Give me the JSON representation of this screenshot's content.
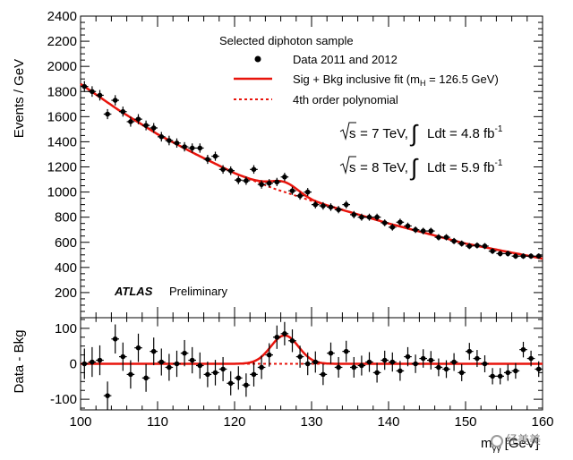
{
  "chart_data": [
    {
      "type": "scatter",
      "panel": "main",
      "ylabel": "Events / GeV",
      "xlim": [
        100,
        160
      ],
      "ylim": [
        0,
        2400
      ],
      "yticks": [
        200,
        400,
        600,
        800,
        1000,
        1200,
        1400,
        1600,
        1800,
        2000,
        2200,
        2400
      ],
      "legend_header": "Selected diphoton sample",
      "legend_position": "top-right",
      "series": [
        {
          "name": "Data 2011 and 2012",
          "style": "points-with-error-bars",
          "x": [
            100.5,
            101.5,
            102.5,
            103.5,
            104.5,
            105.5,
            106.5,
            107.5,
            108.5,
            109.5,
            110.5,
            111.5,
            112.5,
            113.5,
            114.5,
            115.5,
            116.5,
            117.5,
            118.5,
            119.5,
            120.5,
            121.5,
            122.5,
            123.5,
            124.5,
            125.5,
            126.5,
            127.5,
            128.5,
            129.5,
            130.5,
            131.5,
            132.5,
            133.5,
            134.5,
            135.5,
            136.5,
            137.5,
            138.5,
            139.5,
            140.5,
            141.5,
            142.5,
            143.5,
            144.5,
            145.5,
            146.5,
            147.5,
            148.5,
            149.5,
            150.5,
            151.5,
            152.5,
            153.5,
            154.5,
            155.5,
            156.5,
            157.5,
            158.5,
            159.5
          ],
          "y": [
            1840,
            1800,
            1770,
            1620,
            1730,
            1640,
            1560,
            1580,
            1530,
            1510,
            1440,
            1410,
            1390,
            1360,
            1350,
            1350,
            1260,
            1285,
            1180,
            1170,
            1095,
            1090,
            1180,
            1060,
            1070,
            1080,
            1120,
            1010,
            970,
            1000,
            900,
            890,
            880,
            860,
            900,
            820,
            800,
            800,
            800,
            755,
            720,
            760,
            730,
            700,
            690,
            690,
            640,
            640,
            610,
            590,
            570,
            575,
            570,
            530,
            510,
            510,
            490,
            490,
            490,
            490
          ],
          "yerr": [
            43,
            42,
            42,
            40,
            41,
            40,
            40,
            40,
            39,
            39,
            38,
            38,
            37,
            37,
            37,
            37,
            36,
            36,
            34,
            34,
            33,
            33,
            34,
            33,
            33,
            33,
            33,
            32,
            31,
            32,
            30,
            30,
            30,
            29,
            30,
            29,
            28,
            28,
            28,
            27,
            27,
            28,
            27,
            26,
            26,
            26,
            25,
            25,
            25,
            24,
            24,
            24,
            24,
            23,
            23,
            23,
            22,
            22,
            22,
            22
          ],
          "color": "#000000"
        },
        {
          "name": "Sig + Bkg inclusive fit (m",
          "name_sub": "H",
          "name_tail": " = 126.5 GeV)",
          "style": "solid-line",
          "color": "#e8140c",
          "signal_mass": 126.5,
          "signal_width": 1.8,
          "signal_peak": 80,
          "background_y": [
            [
              100,
              1860
            ],
            [
              105,
              1650
            ],
            [
              110,
              1460
            ],
            [
              115,
              1300
            ],
            [
              120,
              1150
            ],
            [
              125,
              1030
            ],
            [
              130,
              930
            ],
            [
              135,
              840
            ],
            [
              140,
              750
            ],
            [
              145,
              670
            ],
            [
              150,
              590
            ],
            [
              155,
              530
            ],
            [
              160,
              470
            ]
          ]
        },
        {
          "name": "4th order polynomial",
          "style": "dashed-line",
          "color": "#e8140c"
        }
      ],
      "annotations": [
        {
          "id": "sqrt_s_7",
          "sqrt": "s",
          "energy": " = 7 TeV, ",
          "integral": "Ldt = 4.8 fb",
          "sup": "-1"
        },
        {
          "id": "sqrt_s_8",
          "sqrt": "s",
          "energy": " = 8 TeV, ",
          "integral": "Ldt = 5.9 fb",
          "sup": "-1"
        },
        {
          "id": "atlas",
          "label": "ATLAS",
          "status": "Preliminary"
        }
      ]
    },
    {
      "type": "scatter",
      "panel": "residual",
      "ylabel": "Data - Bkg",
      "xlabel": "m",
      "xlabel_sub": "γγ",
      "xlabel_unit": " [GeV]",
      "xlim": [
        100,
        160
      ],
      "ylim": [
        -130,
        130
      ],
      "yticks": [
        -100,
        0,
        100
      ],
      "xticks": [
        100,
        110,
        120,
        130,
        140,
        150,
        160
      ],
      "series": [
        {
          "name": "Data - Bkg",
          "style": "points-with-error-bars",
          "x": [
            100.5,
            101.5,
            102.5,
            103.5,
            104.5,
            105.5,
            106.5,
            107.5,
            108.5,
            109.5,
            110.5,
            111.5,
            112.5,
            113.5,
            114.5,
            115.5,
            116.5,
            117.5,
            118.5,
            119.5,
            120.5,
            121.5,
            122.5,
            123.5,
            124.5,
            125.5,
            126.5,
            127.5,
            128.5,
            129.5,
            130.5,
            131.5,
            132.5,
            133.5,
            134.5,
            135.5,
            136.5,
            137.5,
            138.5,
            139.5,
            140.5,
            141.5,
            142.5,
            143.5,
            144.5,
            145.5,
            146.5,
            147.5,
            148.5,
            149.5,
            150.5,
            151.5,
            152.5,
            153.5,
            154.5,
            155.5,
            156.5,
            157.5,
            158.5,
            159.5
          ],
          "y": [
            0,
            5,
            10,
            -90,
            70,
            20,
            -30,
            45,
            -40,
            35,
            5,
            -10,
            0,
            30,
            10,
            -5,
            -30,
            -25,
            -15,
            -55,
            -40,
            -60,
            -30,
            -10,
            25,
            75,
            85,
            65,
            20,
            0,
            5,
            -30,
            30,
            -10,
            35,
            -10,
            -5,
            5,
            -25,
            10,
            5,
            -20,
            20,
            0,
            15,
            10,
            -10,
            -15,
            5,
            -25,
            35,
            15,
            0,
            -35,
            -35,
            -25,
            -20,
            40,
            15,
            -15
          ],
          "yerr": [
            43,
            42,
            42,
            40,
            41,
            40,
            40,
            40,
            39,
            39,
            38,
            38,
            37,
            37,
            37,
            37,
            36,
            36,
            34,
            34,
            33,
            33,
            34,
            33,
            33,
            33,
            33,
            32,
            31,
            32,
            30,
            30,
            30,
            29,
            30,
            29,
            28,
            28,
            28,
            27,
            27,
            28,
            27,
            26,
            26,
            26,
            25,
            25,
            25,
            24,
            24,
            24,
            24,
            23,
            23,
            23,
            22,
            22,
            22,
            22
          ],
          "color": "#000000"
        }
      ]
    }
  ],
  "watermark": {
    "text": "经美美"
  }
}
